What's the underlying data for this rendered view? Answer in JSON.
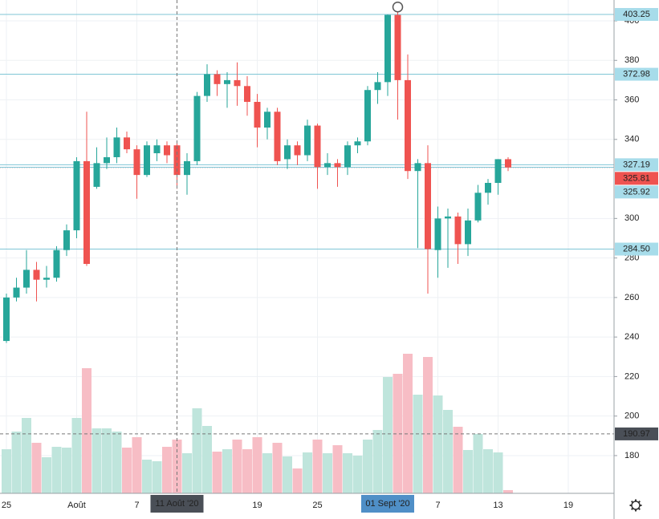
{
  "chart_data": {
    "type": "candlestick",
    "categories": [
      "25",
      null,
      null,
      null,
      null,
      null,
      null,
      "Août",
      null,
      null,
      null,
      null,
      null,
      "7",
      null,
      null,
      null,
      null,
      null,
      null,
      null,
      null,
      null,
      null,
      null,
      "19",
      null,
      null,
      null,
      null,
      null,
      "25",
      null,
      null,
      null,
      null,
      null,
      null,
      null,
      null,
      null,
      null,
      null,
      "7",
      null,
      null,
      null,
      null,
      null,
      "13",
      null
    ],
    "future_tick_label": "19",
    "open": [
      238,
      260,
      265,
      274,
      269,
      270,
      284,
      294,
      329,
      316,
      328,
      331,
      341,
      335,
      322,
      333,
      337,
      337,
      322,
      329,
      362,
      373,
      368,
      370,
      367,
      359,
      346,
      354,
      330,
      337,
      332,
      347,
      326,
      328,
      326,
      337,
      339,
      365,
      369,
      403,
      370,
      324,
      328,
      284,
      300,
      301,
      287,
      299,
      313,
      318,
      330
    ],
    "high": [
      262,
      270,
      284,
      278,
      276,
      286,
      297,
      331,
      354,
      336,
      341,
      346,
      344,
      337,
      339,
      340,
      339,
      339,
      333,
      364,
      378,
      375,
      374,
      379,
      372,
      363,
      356,
      356,
      340,
      339,
      350,
      348,
      333,
      330,
      339,
      341,
      367,
      374,
      403.25,
      407,
      383,
      330,
      337,
      306,
      305,
      303,
      305,
      317,
      320,
      330,
      331
    ],
    "low": [
      237,
      258,
      262,
      258,
      265,
      268,
      281,
      290,
      276,
      315,
      325,
      328,
      333,
      310,
      321,
      329,
      328,
      315,
      312,
      327,
      359,
      362,
      356,
      357,
      352,
      336,
      340,
      327,
      325,
      327,
      329,
      315,
      322,
      316,
      322,
      333,
      337,
      358,
      362,
      350,
      320,
      285,
      262,
      270,
      275,
      277,
      281,
      298,
      307,
      312,
      324
    ],
    "close": [
      260,
      265,
      274,
      269,
      270,
      284,
      294,
      329,
      277,
      328,
      331,
      341,
      335,
      322,
      337,
      337,
      332,
      322,
      329,
      362,
      373,
      368,
      370,
      367,
      359,
      346,
      354,
      329,
      337,
      332,
      347,
      326,
      328,
      326,
      337,
      339,
      365,
      369,
      403,
      370,
      324,
      328,
      284.5,
      300,
      301,
      287,
      299,
      313,
      318,
      330,
      325.81
    ],
    "volume": [
      55,
      77,
      94,
      63,
      45,
      58,
      57,
      94,
      156,
      81,
      81,
      77,
      57,
      70,
      42,
      40,
      58,
      67,
      50,
      106,
      84,
      52,
      55,
      67,
      55,
      70,
      50,
      63,
      46,
      31,
      51,
      67,
      50,
      60,
      50,
      47,
      67,
      79,
      145,
      149,
      174,
      123,
      170,
      122,
      104,
      83,
      54,
      74,
      55,
      51,
      4
    ],
    "up_color": "#26a69a",
    "down_color": "#ef5350",
    "up_volume_color": "#bfe5dc",
    "down_volume_color": "#f7bdc5",
    "ylim": [
      160.9,
      410.55
    ],
    "yticks": [
      180,
      200,
      220,
      240,
      260,
      280,
      300,
      340,
      360,
      380,
      400
    ],
    "grid": true,
    "price_labels": [
      403.25,
      372.98,
      327.19,
      {
        "value": 325.81,
        "current": true
      },
      325.92,
      {
        "value": 284.5,
        "label": "284.50"
      }
    ],
    "crosshair": {
      "index": 17,
      "x_label": "11 Août '20",
      "y": 190.97
    },
    "highlight": {
      "index": 38,
      "x_label": "01 Sept '20"
    }
  }
}
